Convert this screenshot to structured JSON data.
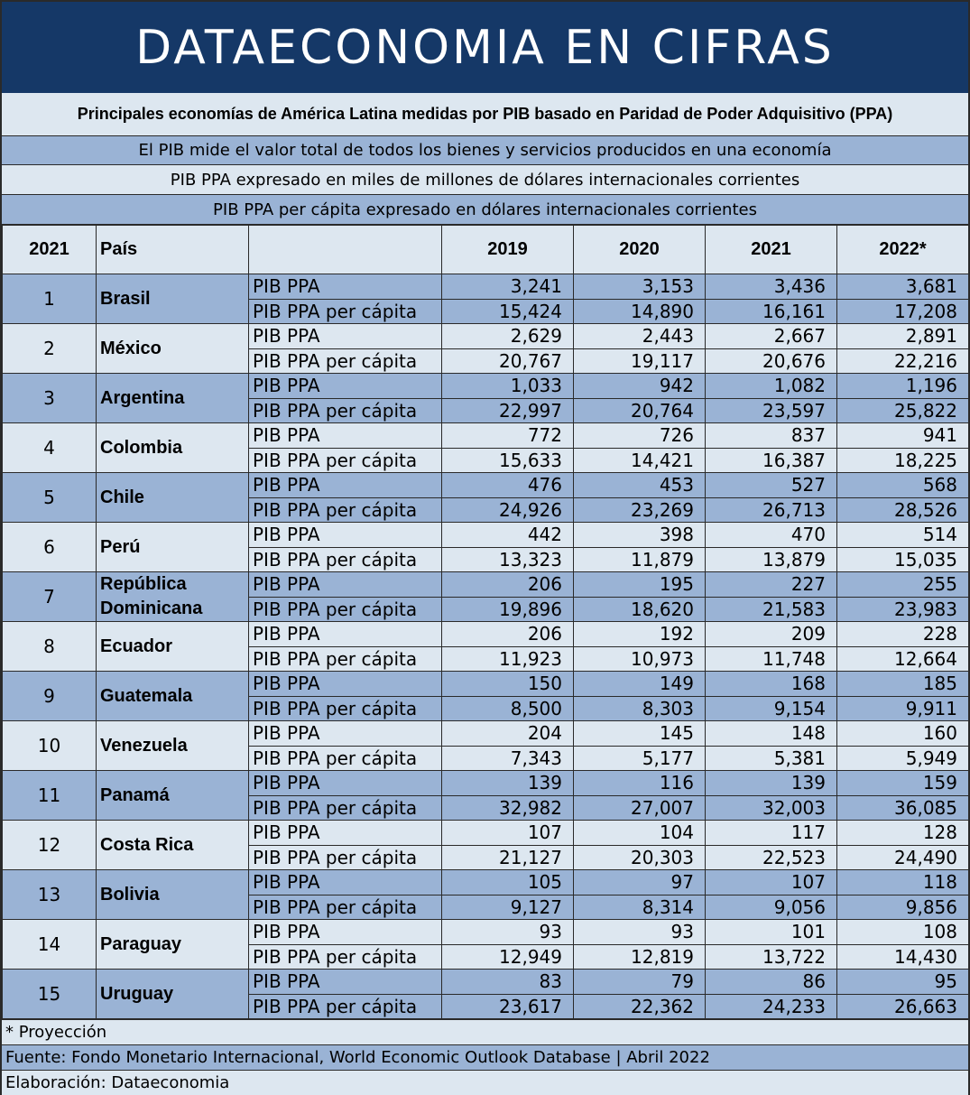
{
  "banner": "DATAECONOMIA EN CIFRAS",
  "subtitle": "Principales economías de América Latina medidas por PIB basado en Paridad de Poder Adquisitivo (PPA)",
  "notes": [
    "El PIB mide el valor total de todos los bienes y servicios producidos en una economía",
    "PIB PPA expresado en miles de millones de dólares internacionales corrientes",
    "PIB PPA per cápita expresado en dólares internacionales corrientes"
  ],
  "table": {
    "headers": [
      "2021",
      "País",
      "",
      "2019",
      "2020",
      "2021",
      "2022*"
    ],
    "metric_labels": [
      "PIB PPA",
      "PIB PPA per cápita"
    ],
    "rows": [
      {
        "rank": "1",
        "country": "Brasil",
        "pib": [
          "3,241",
          "3,153",
          "3,436",
          "3,681"
        ],
        "pc": [
          "15,424",
          "14,890",
          "16,161",
          "17,208"
        ]
      },
      {
        "rank": "2",
        "country": "México",
        "pib": [
          "2,629",
          "2,443",
          "2,667",
          "2,891"
        ],
        "pc": [
          "20,767",
          "19,117",
          "20,676",
          "22,216"
        ]
      },
      {
        "rank": "3",
        "country": "Argentina",
        "pib": [
          "1,033",
          "942",
          "1,082",
          "1,196"
        ],
        "pc": [
          "22,997",
          "20,764",
          "23,597",
          "25,822"
        ]
      },
      {
        "rank": "4",
        "country": "Colombia",
        "pib": [
          "772",
          "726",
          "837",
          "941"
        ],
        "pc": [
          "15,633",
          "14,421",
          "16,387",
          "18,225"
        ]
      },
      {
        "rank": "5",
        "country": "Chile",
        "pib": [
          "476",
          "453",
          "527",
          "568"
        ],
        "pc": [
          "24,926",
          "23,269",
          "26,713",
          "28,526"
        ]
      },
      {
        "rank": "6",
        "country": "Perú",
        "pib": [
          "442",
          "398",
          "470",
          "514"
        ],
        "pc": [
          "13,323",
          "11,879",
          "13,879",
          "15,035"
        ]
      },
      {
        "rank": "7",
        "country": "República Dominicana",
        "pib": [
          "206",
          "195",
          "227",
          "255"
        ],
        "pc": [
          "19,896",
          "18,620",
          "21,583",
          "23,983"
        ]
      },
      {
        "rank": "8",
        "country": "Ecuador",
        "pib": [
          "206",
          "192",
          "209",
          "228"
        ],
        "pc": [
          "11,923",
          "10,973",
          "11,748",
          "12,664"
        ]
      },
      {
        "rank": "9",
        "country": "Guatemala",
        "pib": [
          "150",
          "149",
          "168",
          "185"
        ],
        "pc": [
          "8,500",
          "8,303",
          "9,154",
          "9,911"
        ]
      },
      {
        "rank": "10",
        "country": "Venezuela",
        "pib": [
          "204",
          "145",
          "148",
          "160"
        ],
        "pc": [
          "7,343",
          "5,177",
          "5,381",
          "5,949"
        ]
      },
      {
        "rank": "11",
        "country": "Panamá",
        "pib": [
          "139",
          "116",
          "139",
          "159"
        ],
        "pc": [
          "32,982",
          "27,007",
          "32,003",
          "36,085"
        ]
      },
      {
        "rank": "12",
        "country": "Costa Rica",
        "pib": [
          "107",
          "104",
          "117",
          "128"
        ],
        "pc": [
          "21,127",
          "20,303",
          "22,523",
          "24,490"
        ]
      },
      {
        "rank": "13",
        "country": "Bolivia",
        "pib": [
          "105",
          "97",
          "107",
          "118"
        ],
        "pc": [
          "9,127",
          "8,314",
          "9,056",
          "9,856"
        ]
      },
      {
        "rank": "14",
        "country": "Paraguay",
        "pib": [
          "93",
          "93",
          "101",
          "108"
        ],
        "pc": [
          "12,949",
          "12,819",
          "13,722",
          "14,430"
        ]
      },
      {
        "rank": "15",
        "country": "Uruguay",
        "pib": [
          "83",
          "79",
          "86",
          "95"
        ],
        "pc": [
          "23,617",
          "22,362",
          "24,233",
          "26,663"
        ]
      }
    ]
  },
  "footer": [
    "* Proyección",
    "Fuente: Fondo Monetario Internacional, World Economic Outlook Database | Abril 2022",
    "Elaboración: Dataeconomia"
  ],
  "colors": {
    "banner": "#153867",
    "dark_band": "#9ab3d5",
    "light_band": "#dde7f0"
  }
}
